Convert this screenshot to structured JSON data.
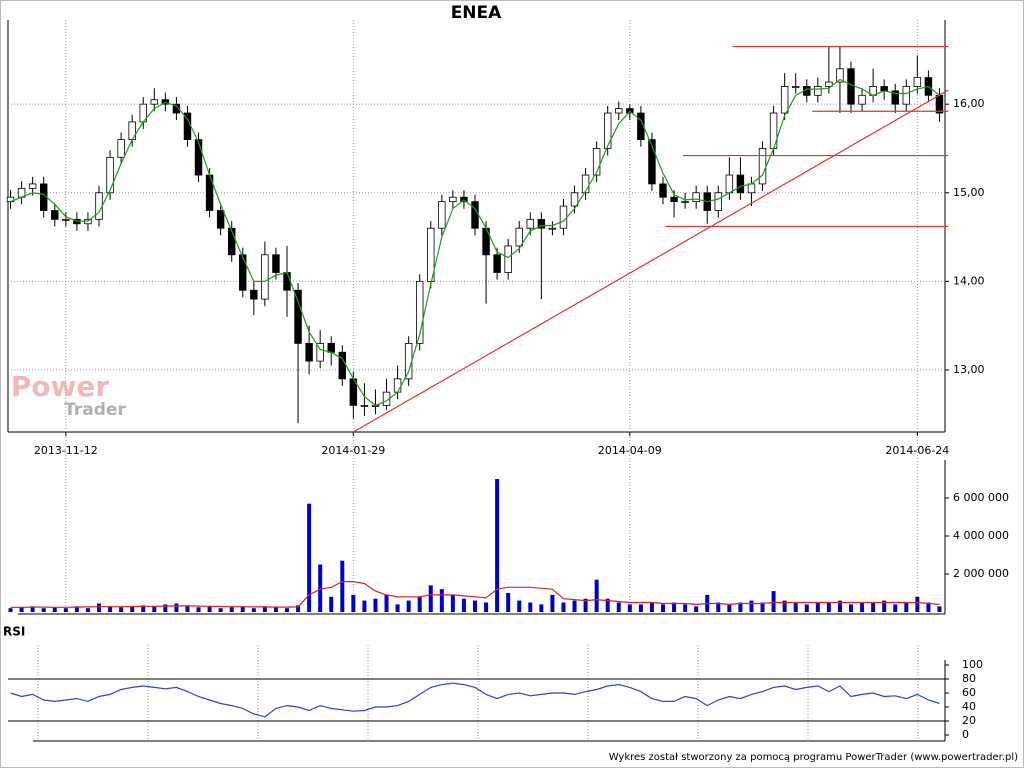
{
  "chart_data": [
    {
      "type": "candlestick",
      "title": "ENEA",
      "categories": [
        null,
        null,
        null,
        null,
        null,
        "2013-11-12",
        null,
        null,
        null,
        null,
        null,
        null,
        null,
        null,
        null,
        null,
        null,
        null,
        null,
        null,
        null,
        null,
        null,
        null,
        null,
        null,
        null,
        null,
        null,
        null,
        null,
        "2014-01-29",
        null,
        null,
        null,
        null,
        null,
        null,
        null,
        null,
        null,
        null,
        null,
        null,
        null,
        null,
        null,
        null,
        null,
        null,
        null,
        null,
        null,
        null,
        null,
        null,
        "2014-04-09",
        null,
        null,
        null,
        null,
        null,
        null,
        null,
        null,
        null,
        null,
        null,
        null,
        null,
        null,
        null,
        null,
        null,
        null,
        null,
        null,
        null,
        null,
        null,
        null,
        null,
        "2014-06-24",
        null,
        null
      ],
      "open": [
        14.9,
        14.95,
        15.05,
        15.1,
        14.8,
        14.7,
        14.7,
        14.65,
        14.7,
        15.0,
        15.4,
        15.6,
        15.8,
        16.0,
        16.05,
        16.0,
        15.9,
        15.6,
        15.2,
        14.8,
        14.6,
        14.3,
        13.9,
        13.8,
        14.3,
        14.1,
        13.9,
        13.3,
        13.1,
        13.3,
        13.2,
        12.9,
        12.6,
        12.6,
        12.6,
        12.75,
        12.9,
        13.3,
        14.0,
        14.6,
        14.9,
        14.95,
        14.9,
        14.6,
        14.3,
        14.1,
        14.4,
        14.6,
        14.7,
        14.6,
        14.6,
        14.85,
        15.0,
        15.2,
        15.5,
        15.9,
        15.95,
        15.9,
        15.6,
        15.1,
        14.95,
        14.9,
        14.9,
        15.0,
        14.8,
        15.0,
        15.2,
        15.0,
        15.1,
        15.5,
        15.9,
        16.2,
        16.2,
        16.1,
        16.2,
        16.25,
        16.4,
        16.0,
        16.1,
        16.2,
        16.15,
        16.0,
        16.2,
        16.3,
        16.1
      ],
      "high": [
        15.03,
        15.13,
        15.18,
        15.18,
        14.88,
        14.78,
        14.78,
        14.78,
        15.08,
        15.48,
        15.68,
        15.88,
        16.08,
        16.18,
        16.13,
        16.08,
        15.98,
        15.68,
        15.28,
        14.88,
        14.68,
        14.38,
        14.0,
        14.45,
        14.38,
        14.4,
        13.98,
        13.5,
        13.45,
        13.38,
        13.28,
        12.98,
        12.85,
        12.78,
        12.9,
        13.05,
        13.38,
        14.08,
        14.68,
        14.98,
        15.03,
        15.03,
        14.98,
        14.68,
        14.38,
        14.48,
        14.68,
        14.78,
        14.78,
        14.68,
        14.93,
        15.08,
        15.28,
        15.58,
        15.98,
        16.03,
        16.0,
        15.98,
        15.68,
        15.18,
        15.03,
        15.0,
        15.08,
        15.08,
        15.08,
        15.4,
        15.4,
        15.18,
        15.58,
        15.98,
        16.35,
        16.35,
        16.28,
        16.3,
        16.65,
        16.65,
        16.48,
        16.18,
        16.4,
        16.28,
        16.23,
        16.28,
        16.55,
        16.38,
        16.18
      ],
      "low": [
        14.82,
        14.87,
        14.97,
        14.72,
        14.62,
        14.62,
        14.57,
        14.57,
        14.62,
        14.92,
        15.32,
        15.52,
        15.72,
        15.92,
        15.92,
        15.82,
        15.52,
        15.12,
        14.72,
        14.52,
        14.22,
        13.82,
        13.62,
        13.72,
        14.02,
        13.6,
        12.4,
        12.95,
        13.02,
        13.05,
        12.82,
        12.45,
        12.48,
        12.5,
        12.55,
        12.67,
        12.82,
        13.22,
        13.92,
        14.52,
        14.82,
        14.82,
        14.52,
        13.75,
        14.02,
        14.02,
        14.32,
        14.52,
        13.8,
        14.52,
        14.52,
        14.77,
        14.92,
        15.12,
        15.42,
        15.82,
        15.82,
        15.52,
        15.02,
        14.87,
        14.72,
        14.82,
        14.82,
        14.65,
        14.72,
        14.92,
        14.92,
        14.85,
        15.02,
        15.42,
        15.82,
        16.12,
        16.02,
        16.02,
        16.12,
        15.9,
        15.9,
        15.92,
        16.02,
        16.05,
        15.9,
        15.92,
        16.12,
        16.02,
        15.8
      ],
      "close": [
        14.95,
        15.05,
        15.1,
        14.8,
        14.7,
        14.7,
        14.65,
        14.7,
        15.0,
        15.4,
        15.6,
        15.8,
        16.0,
        16.05,
        16.0,
        15.9,
        15.6,
        15.2,
        14.8,
        14.6,
        14.3,
        13.9,
        13.8,
        14.3,
        14.1,
        13.9,
        13.3,
        13.1,
        13.3,
        13.2,
        12.9,
        12.6,
        12.6,
        12.6,
        12.75,
        12.9,
        13.3,
        14.0,
        14.6,
        14.9,
        14.95,
        14.9,
        14.6,
        14.3,
        14.1,
        14.4,
        14.6,
        14.7,
        14.6,
        14.6,
        14.85,
        15.0,
        15.2,
        15.5,
        15.9,
        15.95,
        15.9,
        15.6,
        15.1,
        14.95,
        14.9,
        14.9,
        15.0,
        14.8,
        15.0,
        15.2,
        15.0,
        15.1,
        15.5,
        15.9,
        16.2,
        16.2,
        16.1,
        16.2,
        16.25,
        16.4,
        16.0,
        16.1,
        16.2,
        16.15,
        16.0,
        16.2,
        16.3,
        16.1,
        15.9
      ],
      "ma": {
        "color": "#229922",
        "values": [
          14.9,
          14.95,
          15.0,
          14.98,
          14.87,
          14.73,
          14.68,
          14.68,
          14.78,
          15.03,
          15.33,
          15.6,
          15.8,
          15.95,
          16.02,
          15.98,
          15.83,
          15.57,
          15.2,
          14.87,
          14.57,
          14.27,
          14.0,
          14.0,
          14.07,
          14.1,
          13.77,
          13.43,
          13.23,
          13.2,
          13.13,
          12.9,
          12.7,
          12.6,
          12.65,
          12.75,
          12.98,
          13.4,
          13.97,
          14.5,
          14.82,
          14.92,
          14.82,
          14.6,
          14.33,
          14.27,
          14.37,
          14.57,
          14.63,
          14.63,
          14.68,
          14.82,
          15.02,
          15.23,
          15.53,
          15.78,
          15.92,
          15.82,
          15.53,
          15.22,
          14.98,
          14.92,
          14.93,
          14.9,
          14.93,
          15.0,
          15.07,
          15.1,
          15.2,
          15.5,
          15.87,
          16.1,
          16.17,
          16.17,
          16.18,
          16.28,
          16.22,
          16.17,
          16.1,
          16.15,
          16.12,
          16.12,
          16.17,
          16.2,
          16.1
        ]
      },
      "lines": [
        {
          "x": [
            31,
            84.8
          ],
          "y": [
            12.3,
            16.16
          ]
        },
        {
          "x": [
            65.3,
            84.8
          ],
          "y": [
            16.65,
            16.65
          ]
        },
        {
          "x": [
            72.5,
            84.8
          ],
          "y": [
            15.92,
            15.92
          ]
        },
        {
          "x": [
            60.8,
            84.8
          ],
          "y": [
            15.42,
            15.42
          ]
        },
        {
          "x": [
            59.2,
            84.8
          ],
          "y": [
            14.62,
            14.62
          ]
        }
      ],
      "line_color": "#e83030",
      "up_color": "#ffffff",
      "down_color": "#000000",
      "ylim": [
        12.3,
        16.95
      ],
      "yticks": [
        {
          "value": 13,
          "label": "13,00"
        },
        {
          "value": 14,
          "label": "14,00"
        },
        {
          "value": 15,
          "label": "15,00"
        },
        {
          "value": 16,
          "label": "16,00"
        }
      ],
      "grid": true
    },
    {
      "type": "bar",
      "series": [
        {
          "color": "#0000cc",
          "values": [
            200000,
            250000,
            300000,
            200000,
            250000,
            200000,
            300000,
            200000,
            450000,
            300000,
            250000,
            300000,
            350000,
            300000,
            400000,
            450000,
            300000,
            250000,
            300000,
            200000,
            250000,
            300000,
            200000,
            300000,
            250000,
            200000,
            350000,
            5700000,
            2500000,
            800000,
            2700000,
            900000,
            600000,
            700000,
            900000,
            400000,
            600000,
            800000,
            1400000,
            1200000,
            900000,
            700000,
            600000,
            500000,
            7000000,
            1000000,
            600000,
            500000,
            400000,
            900000,
            500000,
            600000,
            700000,
            1700000,
            700000,
            500000,
            400000,
            400000,
            500000,
            400000,
            500000,
            400000,
            300000,
            900000,
            500000,
            400000,
            500000,
            600000,
            500000,
            1100000,
            600000,
            500000,
            400000,
            500000,
            500000,
            600000,
            400000,
            500000,
            500000,
            600000,
            400000,
            500000,
            800000,
            500000,
            300000
          ]
        },
        {
          "type": "line",
          "color": "#e02020",
          "values": [
            250000,
            250000,
            260000,
            260000,
            250000,
            250000,
            260000,
            270000,
            280000,
            280000,
            280000,
            290000,
            300000,
            300000,
            310000,
            320000,
            320000,
            310000,
            300000,
            290000,
            280000,
            280000,
            270000,
            270000,
            260000,
            260000,
            270000,
            900000,
            1200000,
            1300000,
            1600000,
            1600000,
            1500000,
            1100000,
            900000,
            800000,
            800000,
            800000,
            900000,
            900000,
            900000,
            850000,
            800000,
            750000,
            1200000,
            1300000,
            1300000,
            1300000,
            1250000,
            1200000,
            700000,
            650000,
            600000,
            650000,
            600000,
            550000,
            500000,
            500000,
            500000,
            450000,
            450000,
            450000,
            400000,
            450000,
            450000,
            400000,
            450000,
            450000,
            450000,
            500000,
            500000,
            500000,
            500000,
            500000,
            500000,
            500000,
            500000,
            500000,
            500000,
            500000,
            500000,
            500000,
            500000,
            450000,
            400000
          ]
        }
      ],
      "ylim": [
        0,
        8000000
      ],
      "yticks": [
        {
          "value": 2000000,
          "label": "2 000 000"
        },
        {
          "value": 4000000,
          "label": "4 000 000"
        },
        {
          "value": 6000000,
          "label": "6 000 000"
        }
      ]
    },
    {
      "type": "line",
      "title": "RSI",
      "color": "#3340cc",
      "values": [
        60,
        55,
        58,
        50,
        48,
        50,
        52,
        48,
        55,
        58,
        65,
        68,
        70,
        68,
        66,
        68,
        62,
        55,
        50,
        45,
        42,
        38,
        30,
        26,
        38,
        42,
        40,
        35,
        42,
        38,
        36,
        34,
        35,
        40,
        40,
        42,
        48,
        58,
        68,
        72,
        74,
        72,
        68,
        58,
        52,
        58,
        60,
        56,
        58,
        60,
        60,
        58,
        62,
        65,
        70,
        72,
        68,
        62,
        52,
        48,
        48,
        55,
        52,
        42,
        50,
        55,
        52,
        58,
        62,
        68,
        70,
        65,
        68,
        70,
        62,
        70,
        55,
        58,
        60,
        55,
        56,
        52,
        58,
        50,
        45
      ],
      "levels": [
        20,
        80
      ],
      "ylim": [
        0,
        100
      ],
      "yticks": [
        0,
        20,
        40,
        60,
        80,
        100
      ]
    }
  ],
  "watermark": [
    "Power",
    "Trader"
  ],
  "footer": "Wykres został stworzony za pomocą programu PowerTrader (www.powertrader.pl)"
}
